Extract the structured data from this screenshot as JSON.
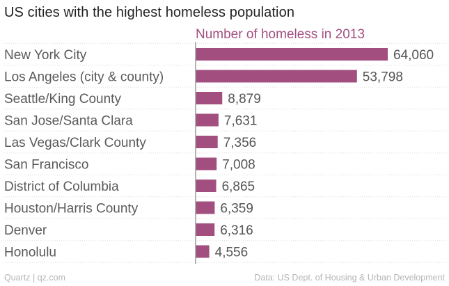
{
  "chart_data": {
    "type": "bar",
    "orientation": "horizontal",
    "title": "US cities with the highest homeless population",
    "series_label": "Number of homeless in 2013",
    "categories": [
      "New York City",
      "Los Angeles (city & county)",
      "Seattle/King County",
      "San Jose/Santa Clara",
      "Las Vegas/Clark County",
      "San Francisco",
      "District of Columbia",
      "Houston/Harris County",
      "Denver",
      "Honolulu"
    ],
    "values": [
      64060,
      53798,
      8879,
      7631,
      7356,
      7008,
      6865,
      6359,
      6316,
      4556
    ],
    "value_labels": [
      "64,060",
      "53,798",
      "8,879",
      "7,631",
      "7,356",
      "7,008",
      "6,865",
      "6,359",
      "6,316",
      "4,556"
    ],
    "xlim": [
      0,
      64060
    ],
    "grid": false,
    "legend": "none"
  },
  "colors": {
    "bar": "#a24f80",
    "baseline": "#999999",
    "row_divider": "#dddddd"
  },
  "footer": {
    "source_left": "Quartz | qz.com",
    "source_right": "Data: US Dept. of Housing & Urban Development"
  }
}
